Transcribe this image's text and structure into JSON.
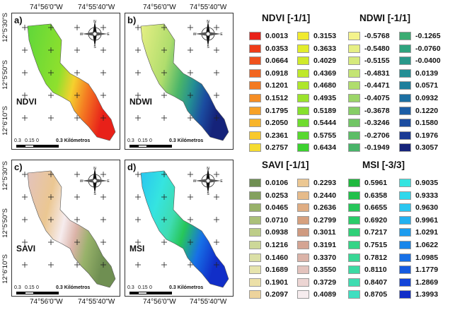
{
  "axes": {
    "lon_left": "74°56'0\"W",
    "lon_right": "74°55'40\"W",
    "lat_labels": [
      "12°5'30\"S",
      "12°5'50\"S",
      "12°6'10\"S"
    ]
  },
  "panels": [
    {
      "letter": "a)",
      "index": "NDVI"
    },
    {
      "letter": "b)",
      "index": "NDWI"
    },
    {
      "letter": "c)",
      "index": "SAVI"
    },
    {
      "letter": "d)",
      "index": "MSI"
    }
  ],
  "scalebar": {
    "ticks": [
      "0.3",
      "0.15",
      "0",
      "0.3"
    ],
    "unit": "Kilómetros"
  },
  "north_arrow": {
    "n": "N",
    "s": "S",
    "e": "E",
    "w": "W"
  },
  "legends": [
    {
      "key": "ndvi",
      "title": "NDVI [-1/1]",
      "col1": [
        {
          "value": "0.0013",
          "color": "#e82119"
        },
        {
          "value": "0.0353",
          "color": "#ee3d19"
        },
        {
          "value": "0.0664",
          "color": "#f0521d"
        },
        {
          "value": "0.0918",
          "color": "#f26520"
        },
        {
          "value": "0.1201",
          "color": "#f37a22"
        },
        {
          "value": "0.1512",
          "color": "#f58d24"
        },
        {
          "value": "0.1795",
          "color": "#f7a126"
        },
        {
          "value": "0.2050",
          "color": "#f8b52a"
        },
        {
          "value": "0.2361",
          "color": "#f8c92c"
        },
        {
          "value": "0.2757",
          "color": "#f5dc30"
        }
      ],
      "col2": [
        {
          "value": "0.3153",
          "color": "#f0ea2e"
        },
        {
          "value": "0.3633",
          "color": "#e2ed2c"
        },
        {
          "value": "0.4029",
          "color": "#d0ea2a"
        },
        {
          "value": "0.4369",
          "color": "#bfe82a"
        },
        {
          "value": "0.4680",
          "color": "#aee62b"
        },
        {
          "value": "0.4935",
          "color": "#9be32c"
        },
        {
          "value": "0.5189",
          "color": "#86e02d"
        },
        {
          "value": "0.5444",
          "color": "#6fdc2e"
        },
        {
          "value": "0.5755",
          "color": "#58d82f"
        },
        {
          "value": "0.6434",
          "color": "#3cd12f"
        }
      ]
    },
    {
      "key": "ndwi",
      "title": "NDWI [-1/1]",
      "col1": [
        {
          "value": "-0.5768",
          "color": "#f4f38c"
        },
        {
          "value": "-0.5480",
          "color": "#e6ef84"
        },
        {
          "value": "-0.5155",
          "color": "#d6ea7c"
        },
        {
          "value": "-0.4831",
          "color": "#c4e474"
        },
        {
          "value": "-0.4471",
          "color": "#b0dd6d"
        },
        {
          "value": "-0.4075",
          "color": "#9bd568"
        },
        {
          "value": "-0.3678",
          "color": "#86cd66"
        },
        {
          "value": "-0.3246",
          "color": "#71c565"
        },
        {
          "value": "-0.2706",
          "color": "#5cbd66"
        },
        {
          "value": "-0.1949",
          "color": "#49b469"
        }
      ],
      "col2": [
        {
          "value": "-0.1265",
          "color": "#3aac72"
        },
        {
          "value": "-0.0760",
          "color": "#2fa37e"
        },
        {
          "value": "-0.0400",
          "color": "#29998a"
        },
        {
          "value": "0.0139",
          "color": "#238e94"
        },
        {
          "value": "0.0571",
          "color": "#1e7f9c"
        },
        {
          "value": "0.0932",
          "color": "#1c6fa2"
        },
        {
          "value": "0.1220",
          "color": "#1c5ea6"
        },
        {
          "value": "0.1580",
          "color": "#1b4ca0"
        },
        {
          "value": "0.1976",
          "color": "#1a3a94"
        },
        {
          "value": "0.3057",
          "color": "#15237a"
        }
      ]
    },
    {
      "key": "savi",
      "title": "SAVI [-1/1]",
      "col1": [
        {
          "value": "0.0106",
          "color": "#6f8f52"
        },
        {
          "value": "0.0253",
          "color": "#84a15e"
        },
        {
          "value": "0.0465",
          "color": "#98b26a"
        },
        {
          "value": "0.0710",
          "color": "#abc079"
        },
        {
          "value": "0.0938",
          "color": "#bdcd88"
        },
        {
          "value": "0.1216",
          "color": "#cdd898"
        },
        {
          "value": "0.1460",
          "color": "#dbe0a6"
        },
        {
          "value": "0.1689",
          "color": "#e6e4ad"
        },
        {
          "value": "0.1901",
          "color": "#ece0a8"
        },
        {
          "value": "0.2097",
          "color": "#edd39c"
        }
      ],
      "col2": [
        {
          "value": "0.2293",
          "color": "#ebc792"
        },
        {
          "value": "0.2440",
          "color": "#e6bb8a"
        },
        {
          "value": "0.2636",
          "color": "#dfad83"
        },
        {
          "value": "0.2799",
          "color": "#d6a07e"
        },
        {
          "value": "0.3011",
          "color": "#cf9a80"
        },
        {
          "value": "0.3191",
          "color": "#d4a493"
        },
        {
          "value": "0.3370",
          "color": "#dbb3a8"
        },
        {
          "value": "0.3550",
          "color": "#e3c3bd"
        },
        {
          "value": "0.3729",
          "color": "#ecd5d3"
        },
        {
          "value": "0.4089",
          "color": "#f6ecee"
        }
      ]
    },
    {
      "key": "msi",
      "title": "MSI [-3/3]",
      "col1": [
        {
          "value": "0.5961",
          "color": "#1fb83e"
        },
        {
          "value": "0.6358",
          "color": "#22c04b"
        },
        {
          "value": "0.6655",
          "color": "#26c65a"
        },
        {
          "value": "0.6920",
          "color": "#2acc69"
        },
        {
          "value": "0.7217",
          "color": "#2fd078"
        },
        {
          "value": "0.7515",
          "color": "#34d486"
        },
        {
          "value": "0.7812",
          "color": "#38d795"
        },
        {
          "value": "0.8110",
          "color": "#3cdaa3"
        },
        {
          "value": "0.8407",
          "color": "#3fdcb1"
        },
        {
          "value": "0.8705",
          "color": "#3fdfc0"
        }
      ],
      "col2": [
        {
          "value": "0.9035",
          "color": "#35e4e0"
        },
        {
          "value": "0.9333",
          "color": "#2fd8ec"
        },
        {
          "value": "0.9630",
          "color": "#29c6f0"
        },
        {
          "value": "0.9961",
          "color": "#23b1f0"
        },
        {
          "value": "1.0291",
          "color": "#1d9cee"
        },
        {
          "value": "1.0622",
          "color": "#1986ea"
        },
        {
          "value": "1.0985",
          "color": "#1770e6"
        },
        {
          "value": "1.1779",
          "color": "#155ae0"
        },
        {
          "value": "1.2869",
          "color": "#1344d8"
        },
        {
          "value": "1.3993",
          "color": "#112ec8"
        }
      ]
    }
  ]
}
